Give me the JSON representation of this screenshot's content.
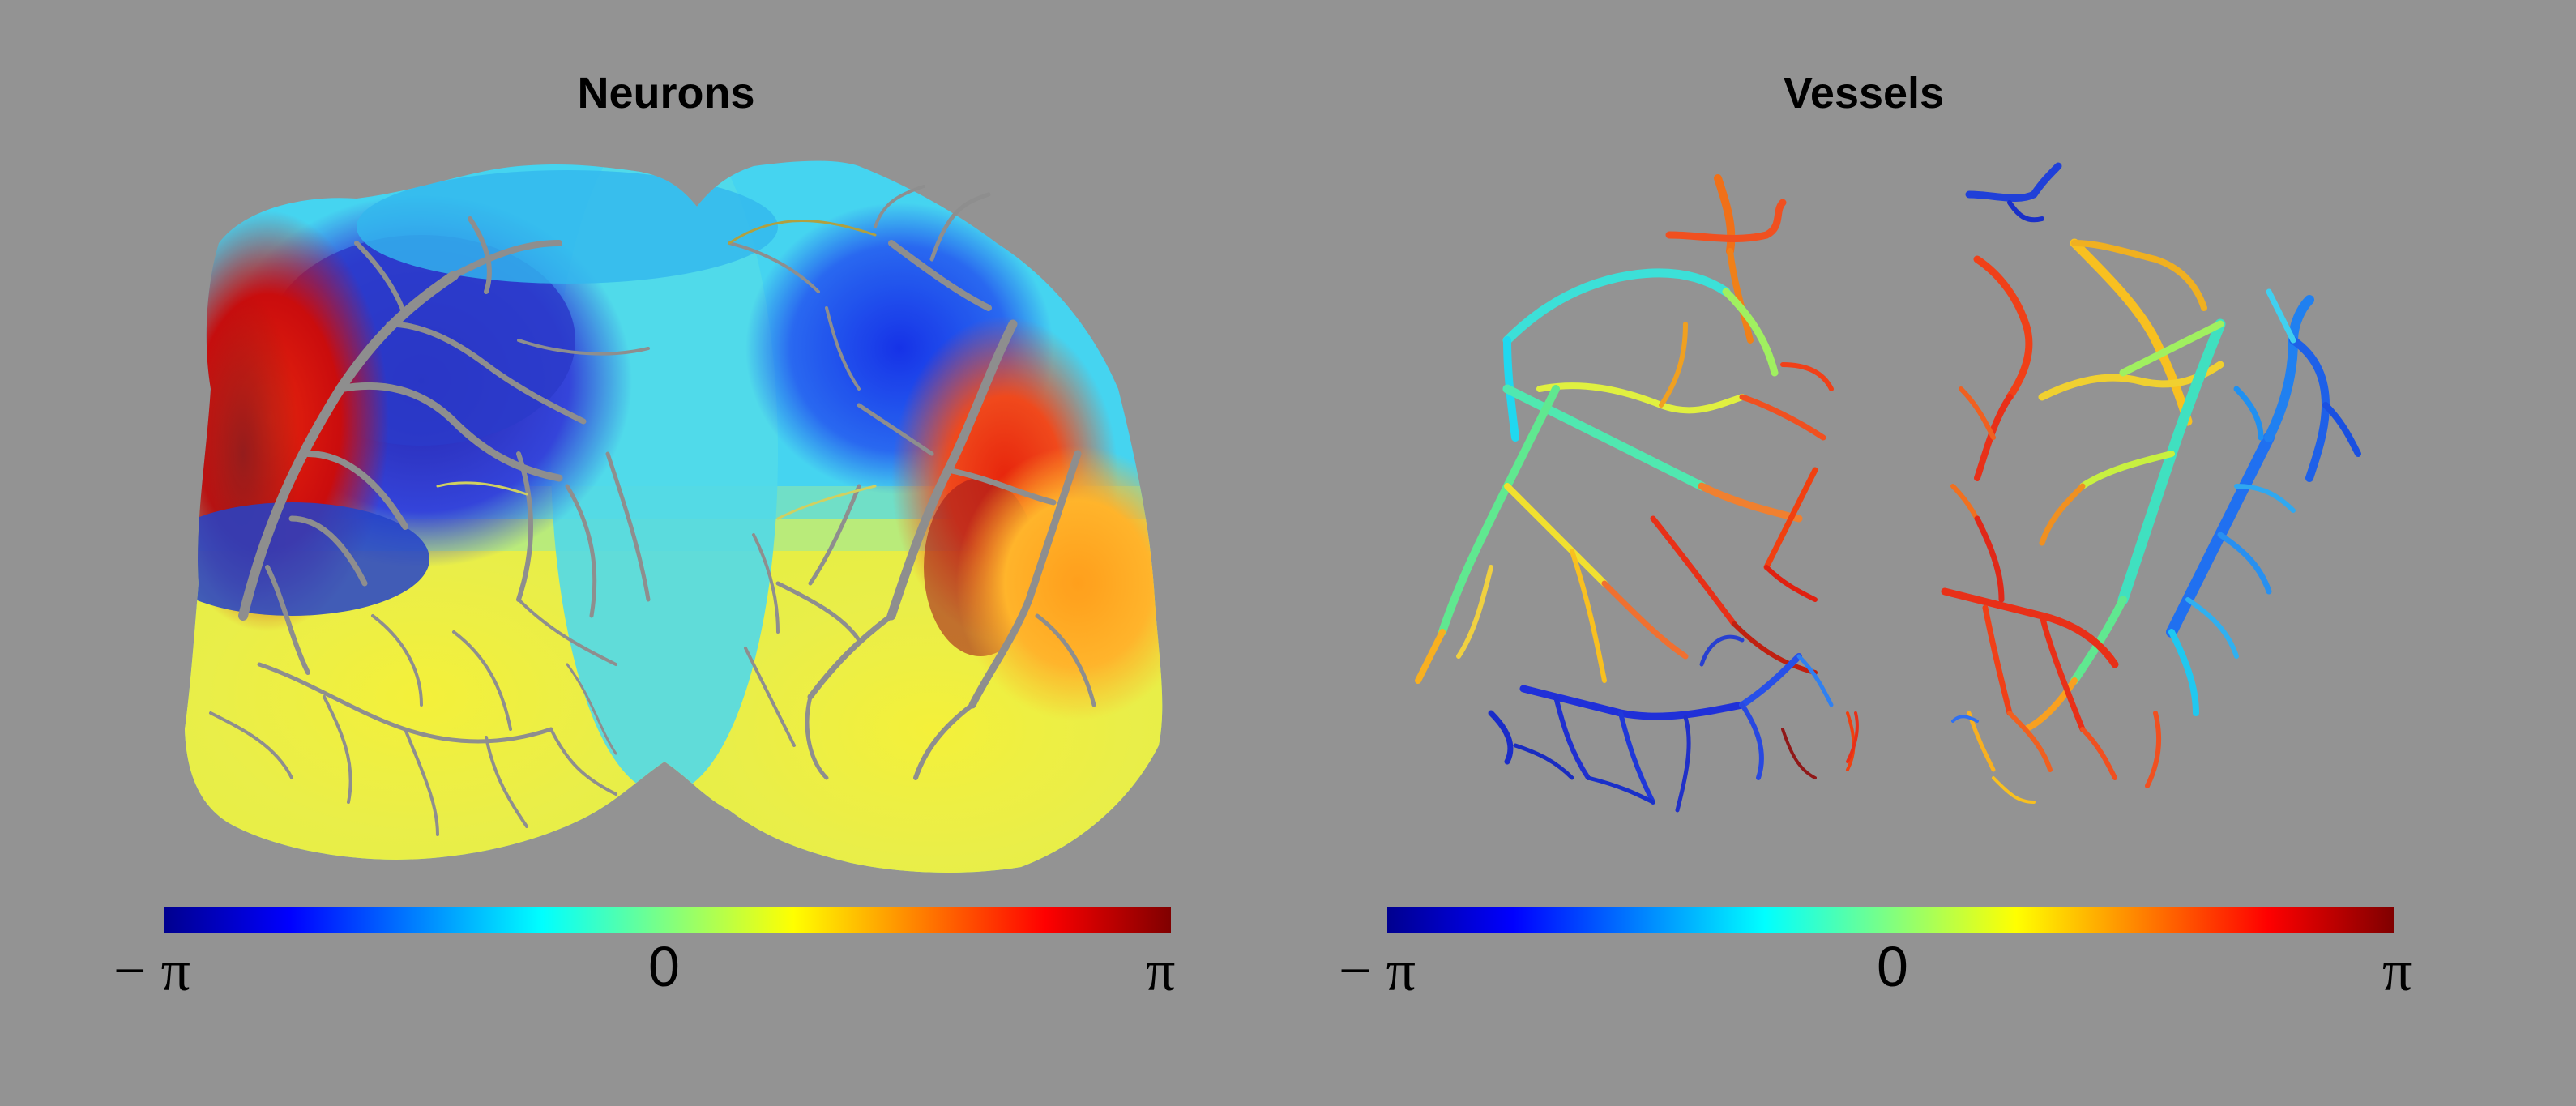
{
  "panels": {
    "neurons": {
      "title": "Neurons"
    },
    "vessels": {
      "title": "Vessels"
    }
  },
  "colorbar": {
    "min_label": "− π",
    "mid_label": "0",
    "max_label": "π",
    "colors": [
      "#00008f",
      "#0000ff",
      "#0080ff",
      "#00ffff",
      "#80ff80",
      "#ffff00",
      "#ff8000",
      "#ff0000",
      "#800000"
    ]
  },
  "background_color": "#939393",
  "vessel_overlay_color": "#8e8e8e"
}
